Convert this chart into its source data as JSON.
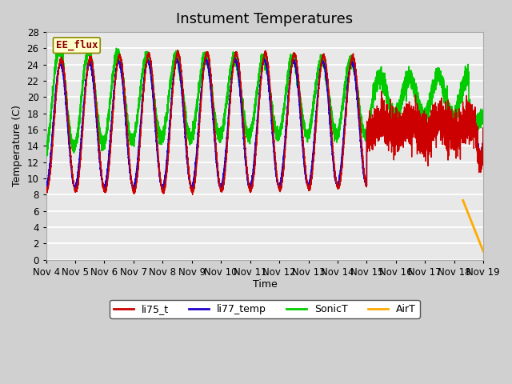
{
  "title": "Instument Temperatures",
  "ylabel": "Temperature (C)",
  "xlabel": "Time",
  "annotation": "EE_flux",
  "ylim": [
    0,
    28
  ],
  "legend_labels": [
    "li75_t",
    "li77_temp",
    "SonicT",
    "AirT"
  ],
  "legend_colors": [
    "#cc0000",
    "#2200cc",
    "#00cc00",
    "#ffaa00"
  ],
  "xtick_labels": [
    "Nov 4",
    "Nov 5",
    "Nov 6",
    "Nov 7",
    "Nov 8",
    "Nov 9",
    "Nov 10",
    "Nov 11",
    "Nov 12",
    "Nov 13",
    "Nov 14",
    "Nov 15",
    "Nov 16",
    "Nov 17",
    "Nov 18",
    "Nov 19"
  ],
  "ytick_values": [
    0,
    2,
    4,
    6,
    8,
    10,
    12,
    14,
    16,
    18,
    20,
    22,
    24,
    26,
    28
  ],
  "title_fontsize": 13,
  "label_fontsize": 9,
  "tick_fontsize": 8.5,
  "fig_bg": "#d0d0d0",
  "plot_bg": "#e8e8e8",
  "grid_color": "#ffffff"
}
